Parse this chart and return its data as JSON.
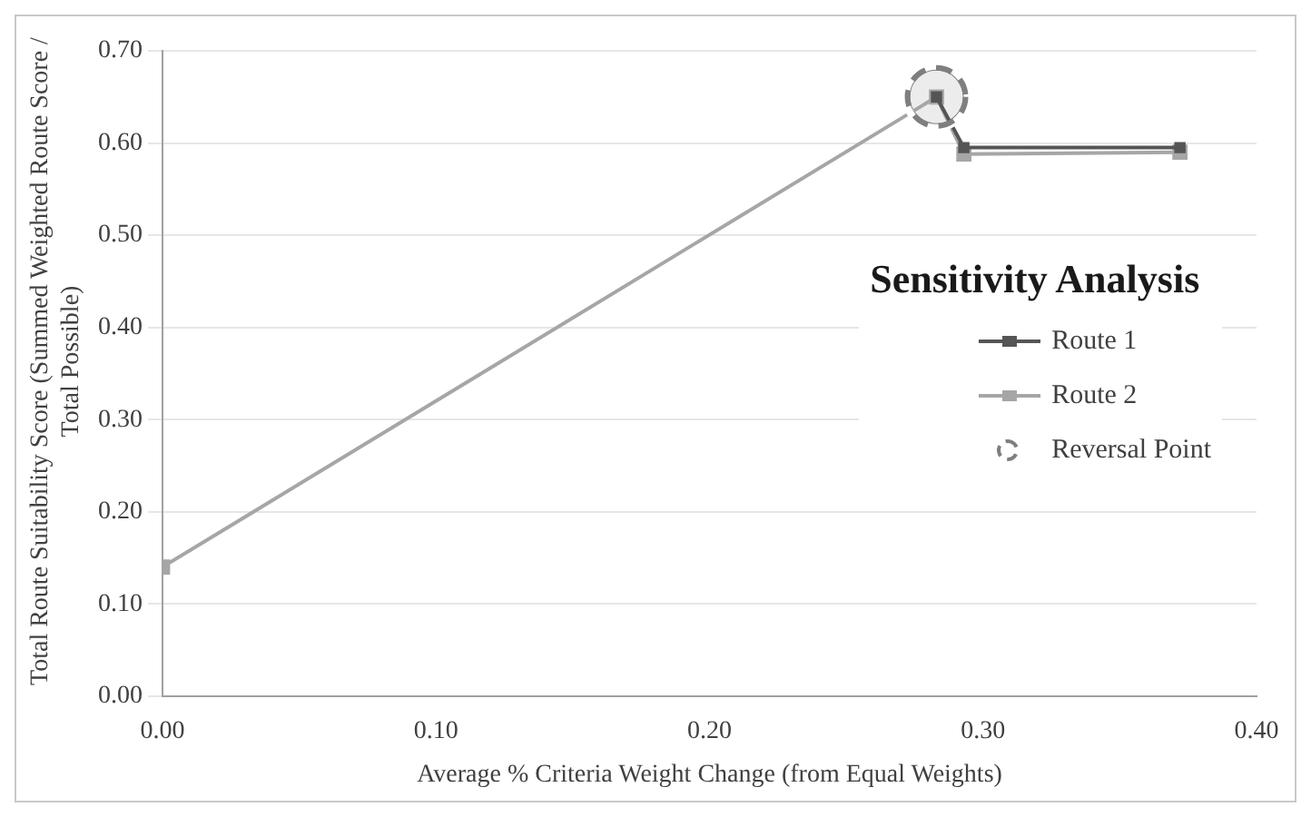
{
  "chart_data": {
    "type": "line",
    "title": "Sensitivity Analysis",
    "xlabel": "Average % Criteria Weight Change (from Equal Weights)",
    "ylabel": "Total Route Suitability Score (Summed Weighted Route Score / Total Possible)",
    "series": [
      {
        "name": "Route 1",
        "color": "#555555",
        "x": [
          0.283,
          0.293,
          0.372
        ],
        "values": [
          0.65,
          0.595,
          0.595
        ],
        "marker": "square"
      },
      {
        "name": "Route 2",
        "color": "#a6a6a6",
        "x": [
          0,
          0.283,
          0.293,
          0.372
        ],
        "values": [
          0.14,
          0.65,
          0.588,
          0.59
        ],
        "marker": "square"
      },
      {
        "name": "Reversal Point",
        "type": "scatter",
        "color": "#7f7f7f",
        "x": [
          0.283
        ],
        "values": [
          0.65
        ],
        "marker": "circle",
        "line_style": "dashed"
      }
    ],
    "xlim": [
      0,
      0.4
    ],
    "xticks": [
      {
        "value": 0,
        "label": "0.00"
      },
      {
        "value": 0.1,
        "label": "0.10"
      },
      {
        "value": 0.2,
        "label": "0.20"
      },
      {
        "value": 0.3,
        "label": "0.30"
      },
      {
        "value": 0.4,
        "label": "0.40"
      }
    ],
    "ylim": [
      0,
      0.7
    ],
    "yticks": [
      {
        "value": 0,
        "label": "0.00"
      },
      {
        "value": 0.1,
        "label": "0.10"
      },
      {
        "value": 0.2,
        "label": "0.20"
      },
      {
        "value": 0.3,
        "label": "0.30"
      },
      {
        "value": 0.4,
        "label": "0.40"
      },
      {
        "value": 0.5,
        "label": "0.50"
      },
      {
        "value": 0.6,
        "label": "0.60"
      },
      {
        "value": 0.7,
        "label": "0.70"
      }
    ],
    "grid": "y",
    "legend": "right"
  }
}
